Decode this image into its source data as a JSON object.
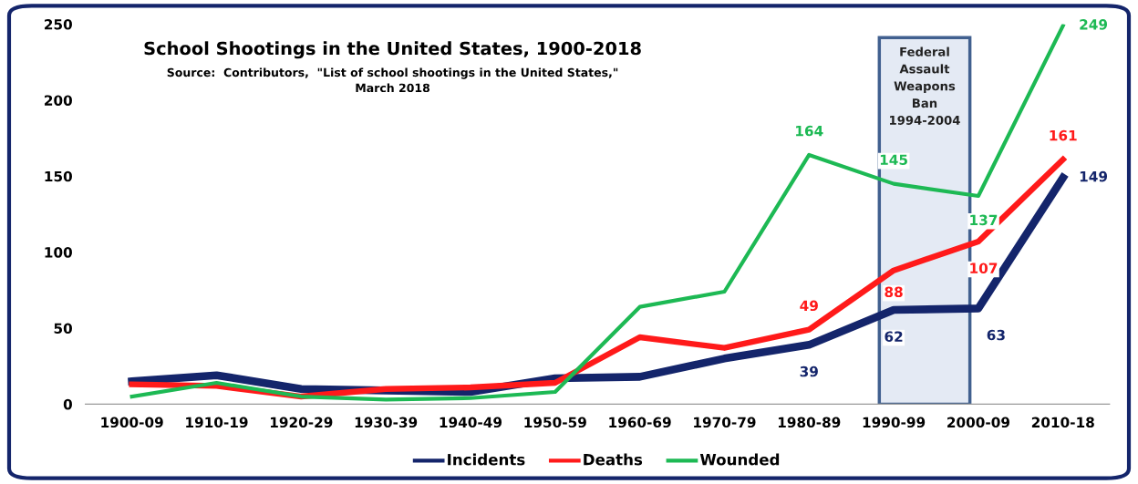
{
  "chart_data": {
    "type": "line",
    "title": "School Shootings in the United States, 1900-2018",
    "subtitle": "Source:  Contributors,  \"List of school shootings in the United States,\"\nMarch 2018",
    "categories": [
      "1900-09",
      "1910-19",
      "1920-29",
      "1930-39",
      "1940-49",
      "1950-59",
      "1960-69",
      "1970-79",
      "1980-89",
      "1990-99",
      "2000-09",
      "2010-18"
    ],
    "series": [
      {
        "name": "Incidents",
        "color": "#14256b",
        "values": [
          15,
          19,
          10,
          9,
          8,
          17,
          18,
          30,
          39,
          62,
          63,
          149
        ],
        "value_labels": [
          null,
          null,
          null,
          null,
          null,
          null,
          null,
          null,
          "39",
          "62",
          "63",
          "149"
        ]
      },
      {
        "name": "Deaths",
        "color": "#ff1a1a",
        "values": [
          13,
          12,
          5,
          10,
          11,
          14,
          44,
          37,
          49,
          88,
          107,
          161
        ],
        "value_labels": [
          null,
          null,
          null,
          null,
          null,
          null,
          null,
          null,
          "49",
          "88",
          "107",
          "161"
        ]
      },
      {
        "name": "Wounded",
        "color": "#1db954",
        "values": [
          5,
          14,
          5,
          3,
          4,
          8,
          64,
          74,
          164,
          145,
          137,
          249
        ],
        "value_labels": [
          null,
          null,
          null,
          null,
          null,
          null,
          null,
          null,
          "164",
          "145",
          "137",
          "249"
        ]
      }
    ],
    "ylim": [
      0,
      250
    ],
    "yticks": [
      0,
      50,
      100,
      150,
      200,
      250
    ],
    "bands": [
      {
        "axis": "x",
        "from": "1990-99",
        "to": "2000-09",
        "label": "Federal\nAssault\nWeapons\nBan\n1994-2004",
        "color": "#e4eaf4"
      }
    ],
    "grid": false,
    "legend": "bottom",
    "marker": "none",
    "line_style": "solid"
  }
}
